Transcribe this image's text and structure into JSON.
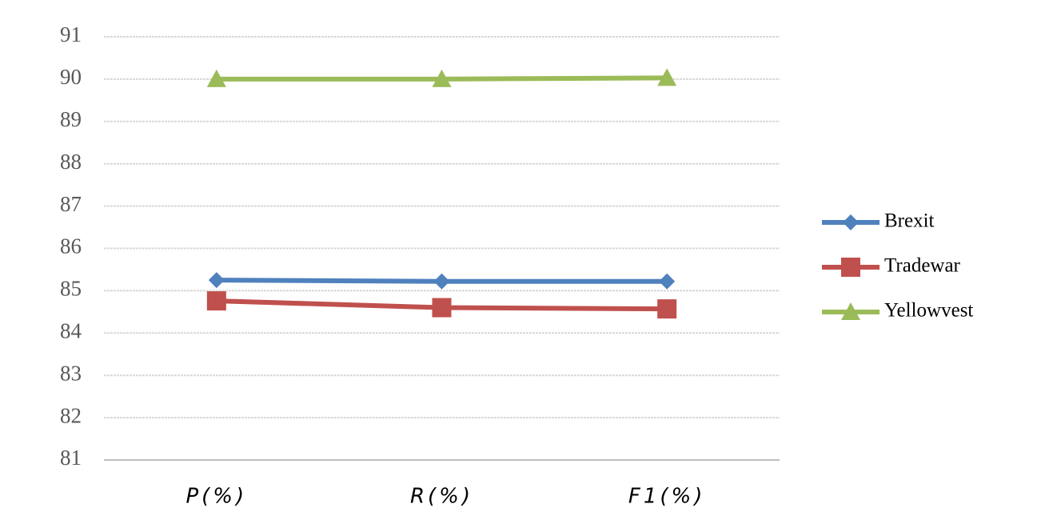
{
  "chart_data": {
    "type": "line",
    "categories": [
      "P(%)",
      "R(%)",
      "F1(%)"
    ],
    "series": [
      {
        "name": "Brexit",
        "color": "#4f81bd",
        "marker": "diamond",
        "values": [
          85.25,
          85.22,
          85.22
        ]
      },
      {
        "name": "Tradewar",
        "color": "#c0504d",
        "marker": "square",
        "values": [
          84.76,
          84.6,
          84.57
        ]
      },
      {
        "name": "Yellowvest",
        "color": "#9bbb59",
        "marker": "triangle",
        "values": [
          90.0,
          90.0,
          90.03
        ]
      }
    ],
    "ylim": [
      81,
      91
    ],
    "yticks": [
      81,
      82,
      83,
      84,
      85,
      86,
      87,
      88,
      89,
      90,
      91
    ],
    "grid": true,
    "legend": "right"
  }
}
